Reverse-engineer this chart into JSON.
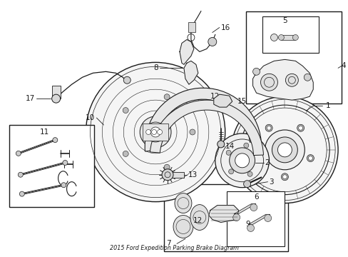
{
  "title": "2015 Ford Expedition Parking Brake Diagram",
  "background_color": "#ffffff",
  "line_color": "#1a1a1a",
  "figsize": [
    4.89,
    3.6
  ],
  "dpi": 100
}
